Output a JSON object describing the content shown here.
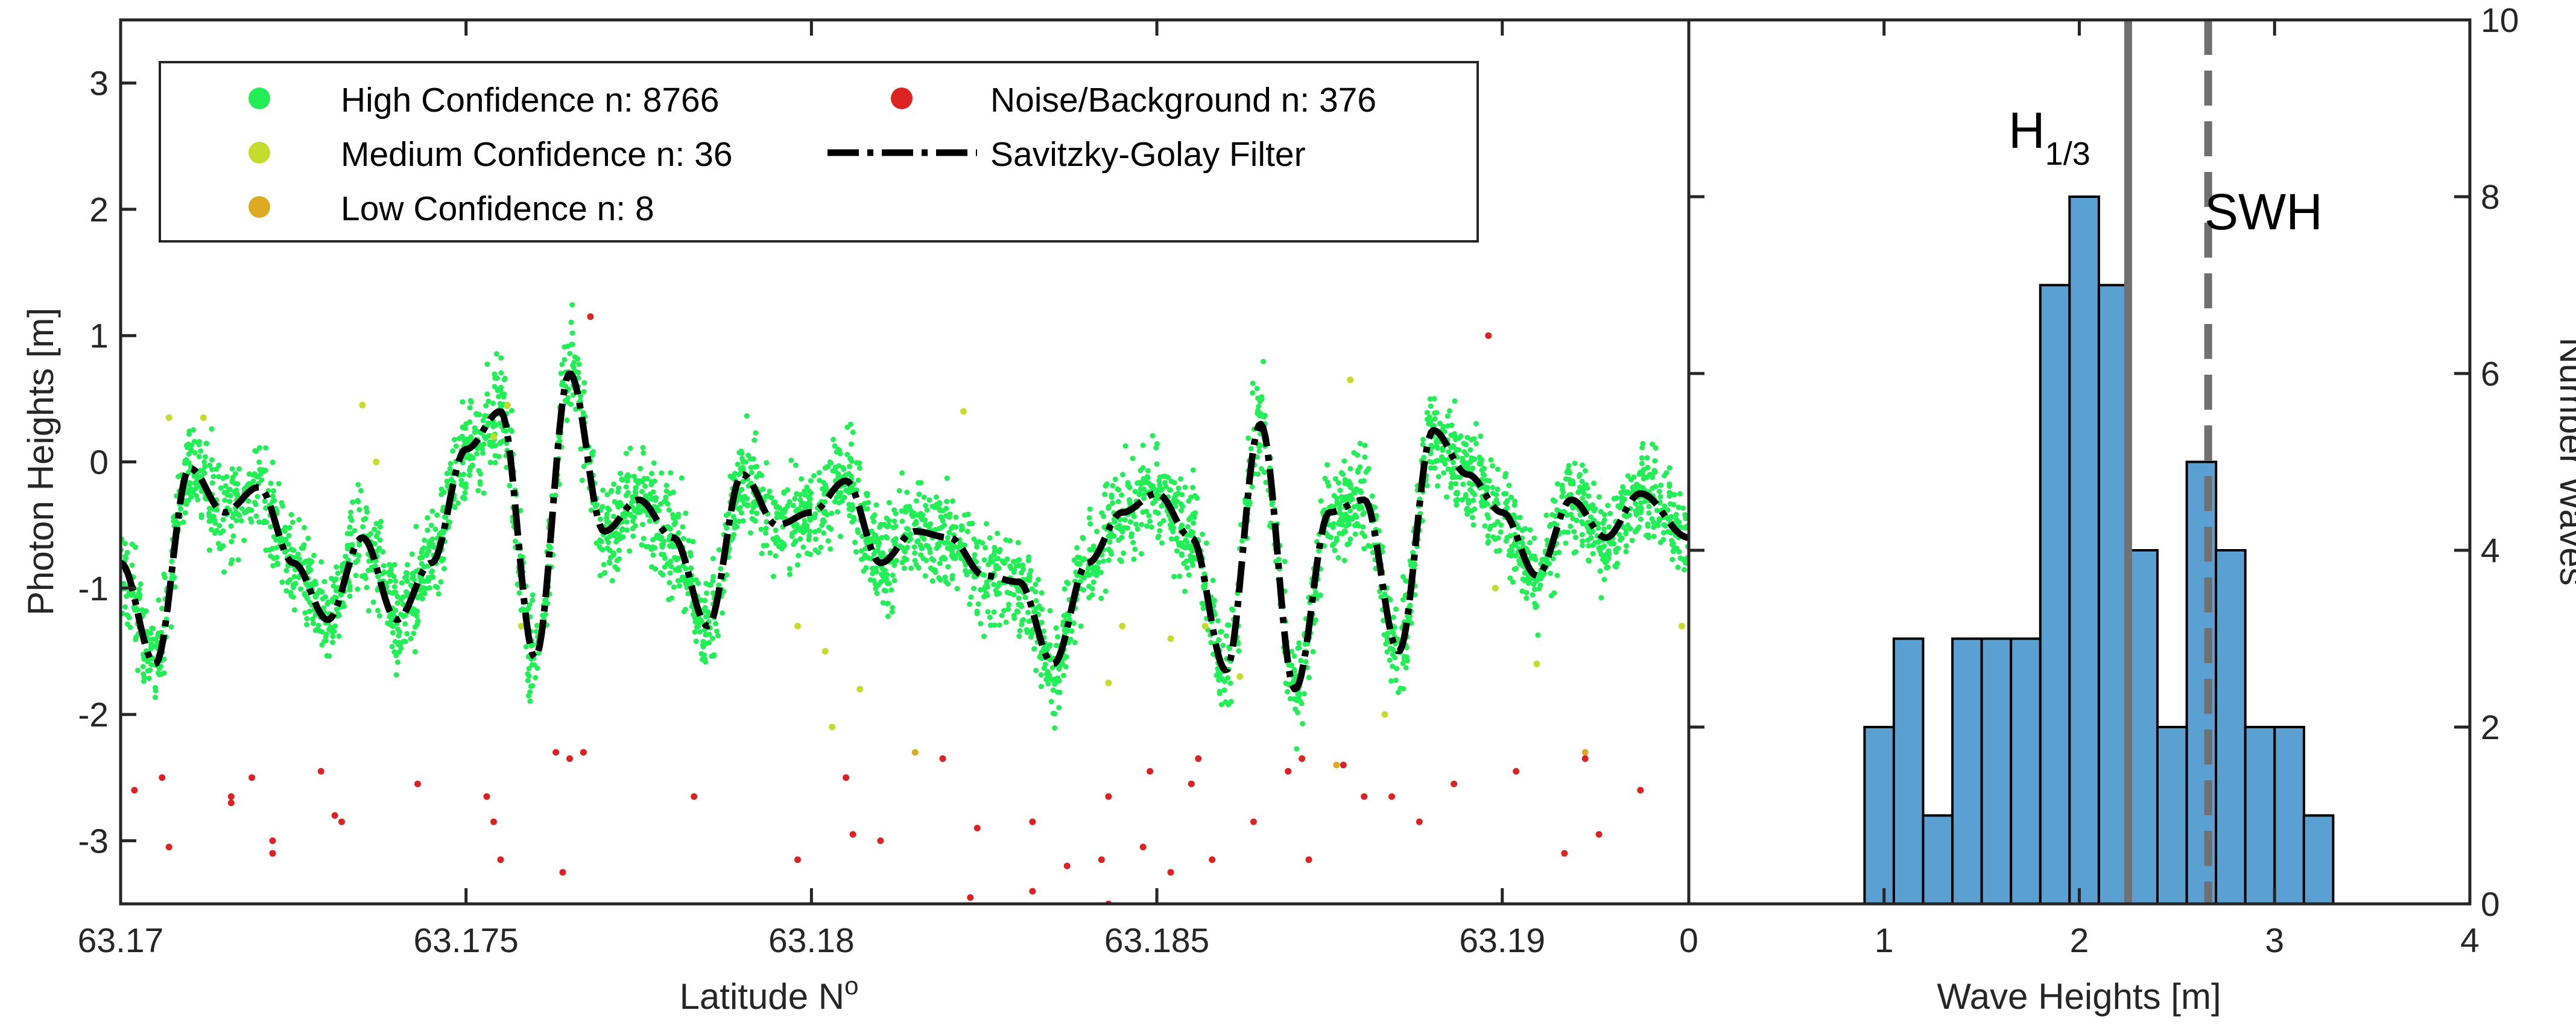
{
  "chart_data": [
    {
      "type": "scatter",
      "xlabel": "Latitude N",
      "xlabel_superscript": "o",
      "ylabel": "Photon Heights [m]",
      "xlim": [
        63.17,
        63.1927
      ],
      "ylim": [
        -3.5,
        3.5
      ],
      "x_ticks": [
        63.17,
        63.175,
        63.18,
        63.185,
        63.19
      ],
      "x_tick_labels": [
        "63.17",
        "63.175",
        "63.18",
        "63.185",
        "63.19"
      ],
      "y_ticks": [
        -3,
        -2,
        -1,
        0,
        1,
        2,
        3
      ],
      "y_tick_labels": [
        "-3",
        "-2",
        "-1",
        "0",
        "1",
        "2",
        "3"
      ],
      "legend": {
        "placement": "top-left",
        "entries": [
          {
            "label": "High Confidence n: 8766",
            "color": "#22ee55",
            "marker": "dot"
          },
          {
            "label": "Medium Confidence n: 36",
            "color": "#c4dd2c",
            "marker": "dot"
          },
          {
            "label": "Low Confidence n: 8",
            "color": "#ddaa22",
            "marker": "dot"
          },
          {
            "label": "Noise/Background n: 376",
            "color": "#dd2222",
            "marker": "dot"
          },
          {
            "label": "Savitzky-Golay Filter",
            "color": "#000000",
            "marker": "dash-dot"
          }
        ]
      },
      "series": [
        {
          "name": "Savitzky-Golay Filter",
          "color": "#000000",
          "x": [
            63.17,
            63.1705,
            63.171,
            63.1715,
            63.172,
            63.1725,
            63.173,
            63.1735,
            63.174,
            63.1745,
            63.175,
            63.1755,
            63.176,
            63.1765,
            63.177,
            63.1775,
            63.178,
            63.1785,
            63.179,
            63.1795,
            63.18,
            63.1805,
            63.181,
            63.1815,
            63.182,
            63.1825,
            63.183,
            63.1835,
            63.184,
            63.1845,
            63.185,
            63.1855,
            63.186,
            63.1865,
            63.187,
            63.1875,
            63.188,
            63.1885,
            63.189,
            63.1895,
            63.19,
            63.1905,
            63.191,
            63.1915,
            63.192,
            63.1927
          ],
          "y": [
            -0.8,
            -1.6,
            -0.05,
            -0.4,
            -0.2,
            -0.8,
            -1.25,
            -0.6,
            -1.25,
            -0.8,
            0.1,
            0.4,
            -1.55,
            0.7,
            -0.55,
            -0.3,
            -0.6,
            -1.3,
            -0.1,
            -0.5,
            -0.4,
            -0.15,
            -0.8,
            -0.55,
            -0.6,
            -0.9,
            -0.95,
            -1.6,
            -0.8,
            -0.4,
            -0.25,
            -0.6,
            -1.65,
            0.3,
            -1.8,
            -0.4,
            -0.3,
            -1.5,
            0.25,
            -0.1,
            -0.4,
            -0.9,
            -0.3,
            -0.6,
            -0.25,
            -0.6
          ]
        },
        {
          "name": "Medium/Low Confidence",
          "color": "#c4dd2c",
          "points": [
            [
              63.1707,
              0.35
            ],
            [
              63.1712,
              0.35
            ],
            [
              63.1735,
              0.45
            ],
            [
              63.1737,
              0.0
            ],
            [
              63.1754,
              0.2
            ],
            [
              63.1756,
              0.45
            ],
            [
              63.1758,
              -1.3
            ],
            [
              63.1798,
              -1.3
            ],
            [
              63.1802,
              -1.5
            ],
            [
              63.1803,
              -2.1
            ],
            [
              63.1807,
              -1.8
            ],
            [
              63.1815,
              -2.3
            ],
            [
              63.1822,
              0.4
            ],
            [
              63.1843,
              -1.75
            ],
            [
              63.1845,
              -1.3
            ],
            [
              63.1852,
              -1.4
            ],
            [
              63.1857,
              -1.3
            ],
            [
              63.1862,
              -1.7
            ],
            [
              63.1876,
              -2.4
            ],
            [
              63.1878,
              0.65
            ],
            [
              63.1883,
              -2.0
            ],
            [
              63.1899,
              -1.0
            ],
            [
              63.1905,
              -1.6
            ],
            [
              63.1912,
              -2.3
            ],
            [
              63.1926,
              -1.3
            ]
          ]
        },
        {
          "name": "Noise/Background",
          "color": "#dd2222",
          "points": [
            [
              63.1702,
              -2.6
            ],
            [
              63.1706,
              -2.5
            ],
            [
              63.1707,
              -3.05
            ],
            [
              63.1716,
              -2.7
            ],
            [
              63.1716,
              -2.65
            ],
            [
              63.1719,
              -2.5
            ],
            [
              63.1722,
              -3.0
            ],
            [
              63.1722,
              -3.1
            ],
            [
              63.1729,
              -2.45
            ],
            [
              63.1731,
              -2.8
            ],
            [
              63.1732,
              -2.85
            ],
            [
              63.1743,
              -2.55
            ],
            [
              63.1753,
              -2.65
            ],
            [
              63.1754,
              -2.85
            ],
            [
              63.1755,
              -3.15
            ],
            [
              63.1763,
              -2.3
            ],
            [
              63.1764,
              -3.25
            ],
            [
              63.1765,
              -2.35
            ],
            [
              63.1767,
              -2.3
            ],
            [
              63.1768,
              1.15
            ],
            [
              63.1783,
              -2.65
            ],
            [
              63.1798,
              -3.15
            ],
            [
              63.1805,
              -2.5
            ],
            [
              63.1806,
              -2.95
            ],
            [
              63.181,
              -3.0
            ],
            [
              63.1819,
              -2.35
            ],
            [
              63.1823,
              -3.45
            ],
            [
              63.1824,
              -2.9
            ],
            [
              63.1832,
              -2.85
            ],
            [
              63.1832,
              -3.4
            ],
            [
              63.1837,
              -3.2
            ],
            [
              63.1842,
              -3.15
            ],
            [
              63.1843,
              -3.5
            ],
            [
              63.1843,
              -2.65
            ],
            [
              63.1848,
              -3.05
            ],
            [
              63.1849,
              -2.45
            ],
            [
              63.1852,
              -3.25
            ],
            [
              63.1855,
              -2.55
            ],
            [
              63.1856,
              -2.35
            ],
            [
              63.1858,
              -3.15
            ],
            [
              63.1864,
              -2.85
            ],
            [
              63.1869,
              -2.45
            ],
            [
              63.1871,
              -2.35
            ],
            [
              63.1872,
              -3.15
            ],
            [
              63.1877,
              -2.4
            ],
            [
              63.188,
              -2.65
            ],
            [
              63.1884,
              -2.65
            ],
            [
              63.1888,
              -2.85
            ],
            [
              63.1893,
              -2.55
            ],
            [
              63.1898,
              1.0
            ],
            [
              63.1902,
              -2.45
            ],
            [
              63.1909,
              -3.1
            ],
            [
              63.1912,
              -2.35
            ],
            [
              63.1914,
              -2.95
            ],
            [
              63.192,
              -2.6
            ]
          ]
        }
      ],
      "high_confidence_band_halfwidth_m": 0.38
    },
    {
      "type": "bar",
      "xlabel": "Wave Heights [m]",
      "ylabel": "Number Waves",
      "xlim": [
        0,
        4
      ],
      "ylim": [
        0,
        10
      ],
      "y_axis_side": "right",
      "x_ticks": [
        0,
        1,
        2,
        3,
        4
      ],
      "x_tick_labels": [
        "0",
        "1",
        "2",
        "3",
        "4"
      ],
      "y_ticks": [
        0,
        2,
        4,
        6,
        8,
        10
      ],
      "y_tick_labels": [
        "0",
        "2",
        "4",
        "6",
        "8",
        "10"
      ],
      "bar_color": "#5aa0d3",
      "bin_edges": [
        0.9,
        1.05,
        1.2,
        1.35,
        1.5,
        1.65,
        1.8,
        1.95,
        2.1,
        2.25,
        2.4,
        2.55,
        2.7,
        2.85,
        3.0,
        3.15,
        3.3
      ],
      "values": [
        2,
        3,
        1,
        3,
        3,
        3,
        7,
        8,
        7,
        4,
        2,
        5,
        4,
        2,
        2,
        1
      ],
      "reference_lines": [
        {
          "label": "H",
          "subscript": "1/3",
          "x": 2.25,
          "style": "solid",
          "color": "#707070"
        },
        {
          "label": "SWH",
          "x": 2.66,
          "style": "dashed",
          "color": "#707070"
        }
      ]
    }
  ]
}
